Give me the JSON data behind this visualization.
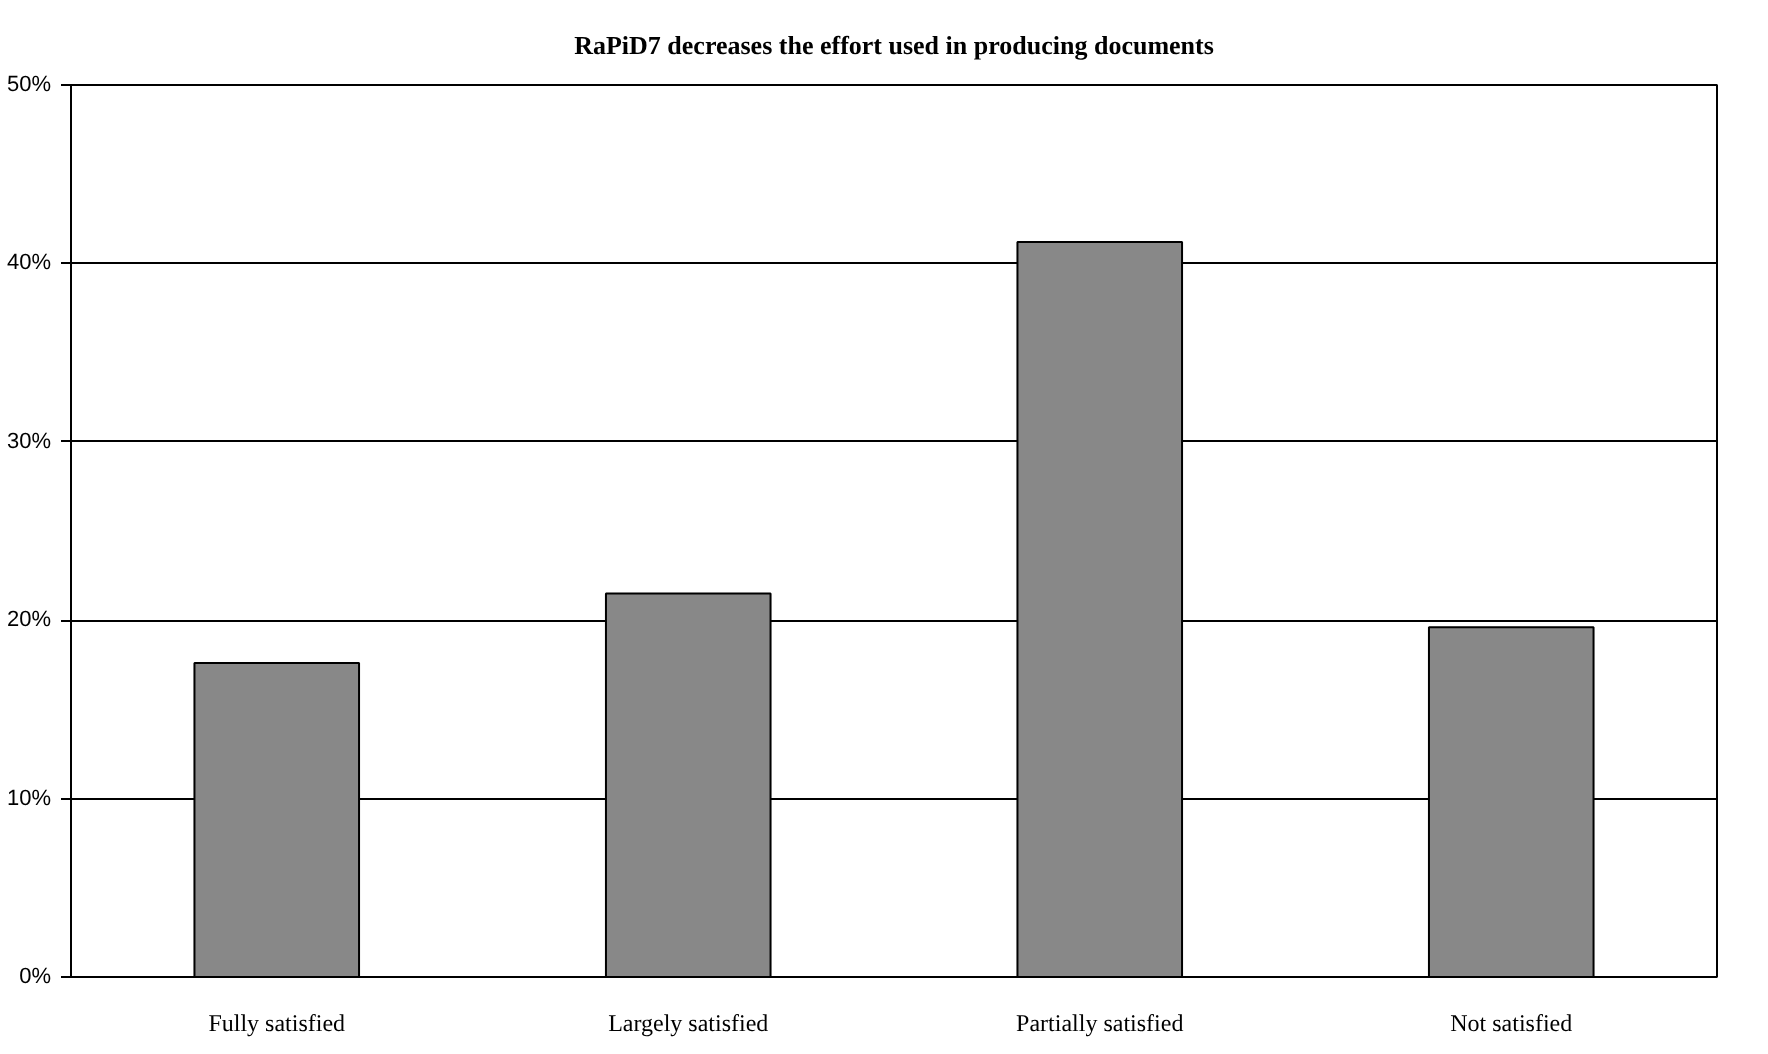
{
  "chart_data": {
    "type": "bar",
    "title": "RaPiD7 decreases the effort used in producing documents",
    "categories": [
      "Fully satisfied",
      "Largely satisfied",
      "Partially satisfied",
      "Not satisfied"
    ],
    "values": [
      17.6,
      21.5,
      41.2,
      19.6
    ],
    "color": "#888888",
    "ylim": [
      0,
      50
    ],
    "yticks": [
      {
        "value": 0,
        "label": "0%"
      },
      {
        "value": 10,
        "label": "10%"
      },
      {
        "value": 20,
        "label": "20%"
      },
      {
        "value": 30,
        "label": "30%"
      },
      {
        "value": 40,
        "label": "40%"
      },
      {
        "value": 50,
        "label": "50%"
      }
    ],
    "grid": "y"
  }
}
